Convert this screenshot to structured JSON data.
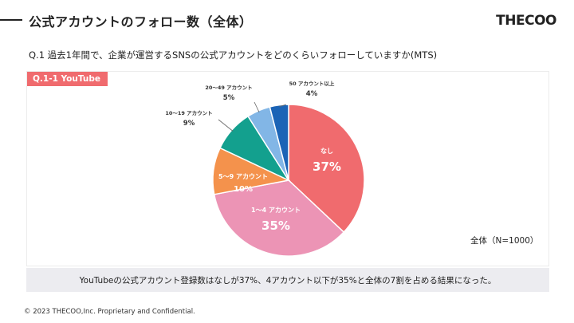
{
  "page": {
    "title": "公式アカウントのフォロー数（全体）",
    "brand": "THECOO",
    "question": "Q.1 過去1年間で、企業が運営するSNSの公式アカウントをどのくらいフォローしていますか(MTS)",
    "tab_label": "Q.1-1 YouTube",
    "total_note": "全体（N=1000）",
    "summary": "YouTubeの公式アカウント登録数はなしが37%、4アカウント以下が35%と全体の7割を占める結果になった。",
    "footer": "© 2023 THECOO,Inc. Proprietary and Confidential."
  },
  "chart_data": {
    "type": "pie",
    "title": "Q.1-1 YouTube",
    "start": "12 o'clock, clockwise",
    "slices": [
      {
        "label": "なし",
        "value": 37,
        "value_label": "37%",
        "color": "#f06b6e",
        "label_color": "#ffffff",
        "label_placement": "inside"
      },
      {
        "label": "1〜4 アカウント",
        "value": 35,
        "value_label": "35%",
        "color": "#ec94b5",
        "label_color": "#ffffff",
        "label_placement": "inside"
      },
      {
        "label": "5〜9 アカウント",
        "value": 10,
        "value_label": "10%",
        "color": "#f4924c",
        "label_color": "#ffffff",
        "label_placement": "inside"
      },
      {
        "label": "10〜19 アカウント",
        "value": 9,
        "value_label": "9%",
        "color": "#13a08e",
        "label_color": "#333333",
        "label_placement": "outside"
      },
      {
        "label": "20〜49 アカウント",
        "value": 5,
        "value_label": "5%",
        "color": "#82b6e6",
        "label_color": "#333333",
        "label_placement": "outside"
      },
      {
        "label": "50 アカウント以上",
        "value": 4,
        "value_label": "4%",
        "color": "#1b64b6",
        "label_color": "#333333",
        "label_placement": "outside"
      }
    ]
  }
}
